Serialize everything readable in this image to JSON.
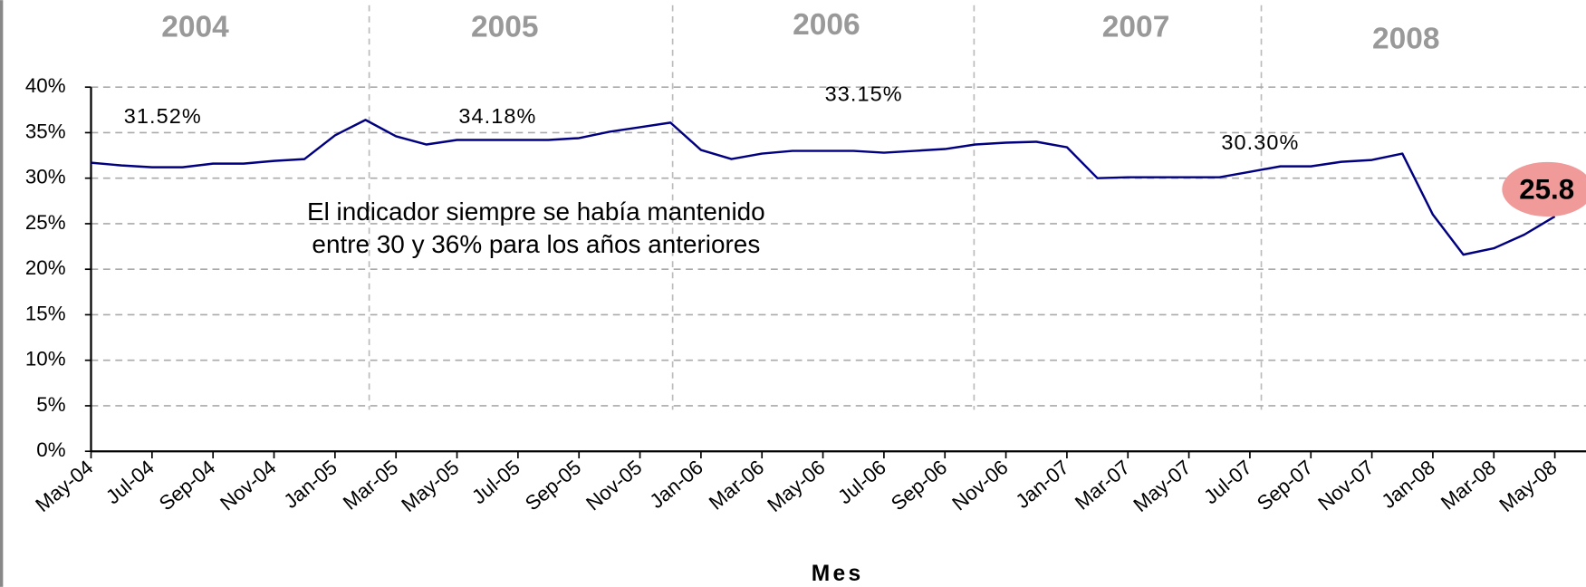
{
  "chart_data": {
    "type": "line",
    "x_label": "Mes",
    "categories": [
      "May-04",
      null,
      "Jul-04",
      null,
      "Sep-04",
      null,
      "Nov-04",
      null,
      "Jan-05",
      null,
      "Mar-05",
      null,
      "May-05",
      null,
      "Jul-05",
      null,
      "Sep-05",
      null,
      "Nov-05",
      null,
      "Jan-06",
      null,
      "Mar-06",
      null,
      "May-06",
      null,
      "Jul-06",
      null,
      "Sep-06",
      null,
      "Nov-06",
      null,
      "Jan-07",
      null,
      "Mar-07",
      null,
      "May-07",
      null,
      "Jul-07",
      null,
      "Sep-07",
      null,
      "Nov-07",
      null,
      "Jan-08",
      null,
      "Mar-08",
      null,
      "May-08"
    ],
    "series": [
      {
        "color": "#000080",
        "values": [
          31.7,
          31.4,
          31.2,
          31.2,
          31.6,
          31.6,
          31.9,
          32.1,
          34.7,
          36.4,
          34.6,
          33.7,
          34.2,
          34.2,
          34.2,
          34.2,
          34.4,
          35.1,
          35.6,
          36.1,
          33.1,
          32.1,
          32.7,
          33.0,
          33.0,
          33.0,
          32.8,
          33.0,
          33.2,
          33.7,
          33.9,
          34.0,
          33.4,
          30.0,
          30.1,
          30.1,
          30.1,
          30.1,
          30.7,
          31.3,
          31.3,
          31.8,
          32.0,
          32.7,
          26.0,
          21.6,
          22.3,
          23.8,
          25.8
        ]
      }
    ],
    "ylim": [
      0,
      40
    ],
    "yticks": [
      {
        "value": 0,
        "label": "0%"
      },
      {
        "value": 5,
        "label": "5%"
      },
      {
        "value": 10,
        "label": "10%"
      },
      {
        "value": 15,
        "label": "15%"
      },
      {
        "value": 20,
        "label": "20%"
      },
      {
        "value": 25,
        "label": "25%"
      },
      {
        "value": 30,
        "label": "30%"
      },
      {
        "value": 35,
        "label": "35%"
      },
      {
        "value": 40,
        "label": "40%"
      }
    ],
    "grid": true,
    "year_labels": [
      "2004",
      "2005",
      "2006",
      "2007",
      "2008"
    ],
    "annotations": [
      "31.52%",
      "34.18%",
      "33.15%",
      "30.30%"
    ],
    "note": [
      "El indicador siempre se había mantenido",
      "entre 30 y 36% para los años anteriores"
    ],
    "callout": "25.8"
  }
}
